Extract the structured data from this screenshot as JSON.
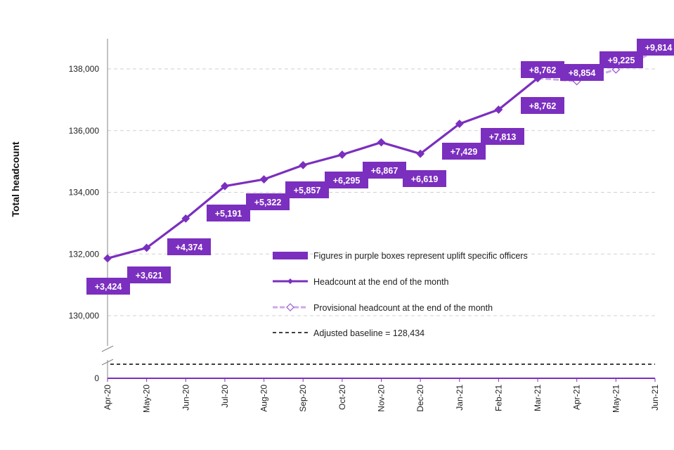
{
  "chart_data": {
    "type": "line",
    "ylabel": "Total headcount",
    "categories": [
      "Apr-20",
      "May-20",
      "Jun-20",
      "Jul-20",
      "Aug-20",
      "Sep-20",
      "Oct-20",
      "Nov-20",
      "Dec-20",
      "Jan-21",
      "Feb-21",
      "Mar-21",
      "Apr-21",
      "May-21",
      "Jun-21"
    ],
    "y_ticks": [
      "0",
      "130,000",
      "132,000",
      "134,000",
      "136,000",
      "138,000"
    ],
    "ylim": [
      130000,
      139000
    ],
    "axis_break": true,
    "series": [
      {
        "name": "Headcount at the end of the month",
        "color": "#7B2FBE",
        "values": [
          131858,
          132200,
          133150,
          134200,
          134420,
          134880,
          135220,
          135620,
          135250,
          136220,
          136680,
          137700,
          null,
          null,
          null
        ]
      },
      {
        "name": "Provisional headcount at the end of the month",
        "color": "#CDA9E6",
        "values": [
          null,
          null,
          null,
          null,
          null,
          null,
          null,
          null,
          null,
          null,
          null,
          137700,
          137600,
          137980,
          138560
        ]
      },
      {
        "name": "Adjusted baseline = 128,434",
        "color": "#000000",
        "values": [
          128434,
          128434,
          128434,
          128434,
          128434,
          128434,
          128434,
          128434,
          128434,
          128434,
          128434,
          128434,
          128434,
          128434,
          128434
        ]
      }
    ],
    "uplift_labels": [
      {
        "category": "Apr-20",
        "text": "+3,424"
      },
      {
        "category": "May-20",
        "text": "+3,621"
      },
      {
        "category": "Jun-20",
        "text": "+4,374"
      },
      {
        "category": "Jul-20",
        "text": "+5,191"
      },
      {
        "category": "Aug-20",
        "text": "+5,322"
      },
      {
        "category": "Sep-20",
        "text": "+5,857"
      },
      {
        "category": "Oct-20",
        "text": "+6,295"
      },
      {
        "category": "Nov-20",
        "text": "+6,867"
      },
      {
        "category": "Dec-20",
        "text": "+6,619"
      },
      {
        "category": "Jan-21",
        "text": "+7,429"
      },
      {
        "category": "Feb-21",
        "text": "+7,813"
      },
      {
        "category": "Mar-21",
        "text": "+8,762"
      },
      {
        "category": "Mar-21",
        "text": "+8,762"
      },
      {
        "category": "Apr-21",
        "text": "+8,854"
      },
      {
        "category": "May-21",
        "text": "+9,225"
      },
      {
        "category": "Jun-21",
        "text": "+9,814"
      }
    ],
    "legend": {
      "placement": "center-right",
      "items": [
        "Figures in purple boxes represent uplift specific officers",
        "Headcount at the end of the month",
        "Provisional headcount at the end of the month",
        "Adjusted baseline = 128,434"
      ]
    },
    "grid": "horizontal-dashed",
    "box_color": "#7B2FBE"
  }
}
